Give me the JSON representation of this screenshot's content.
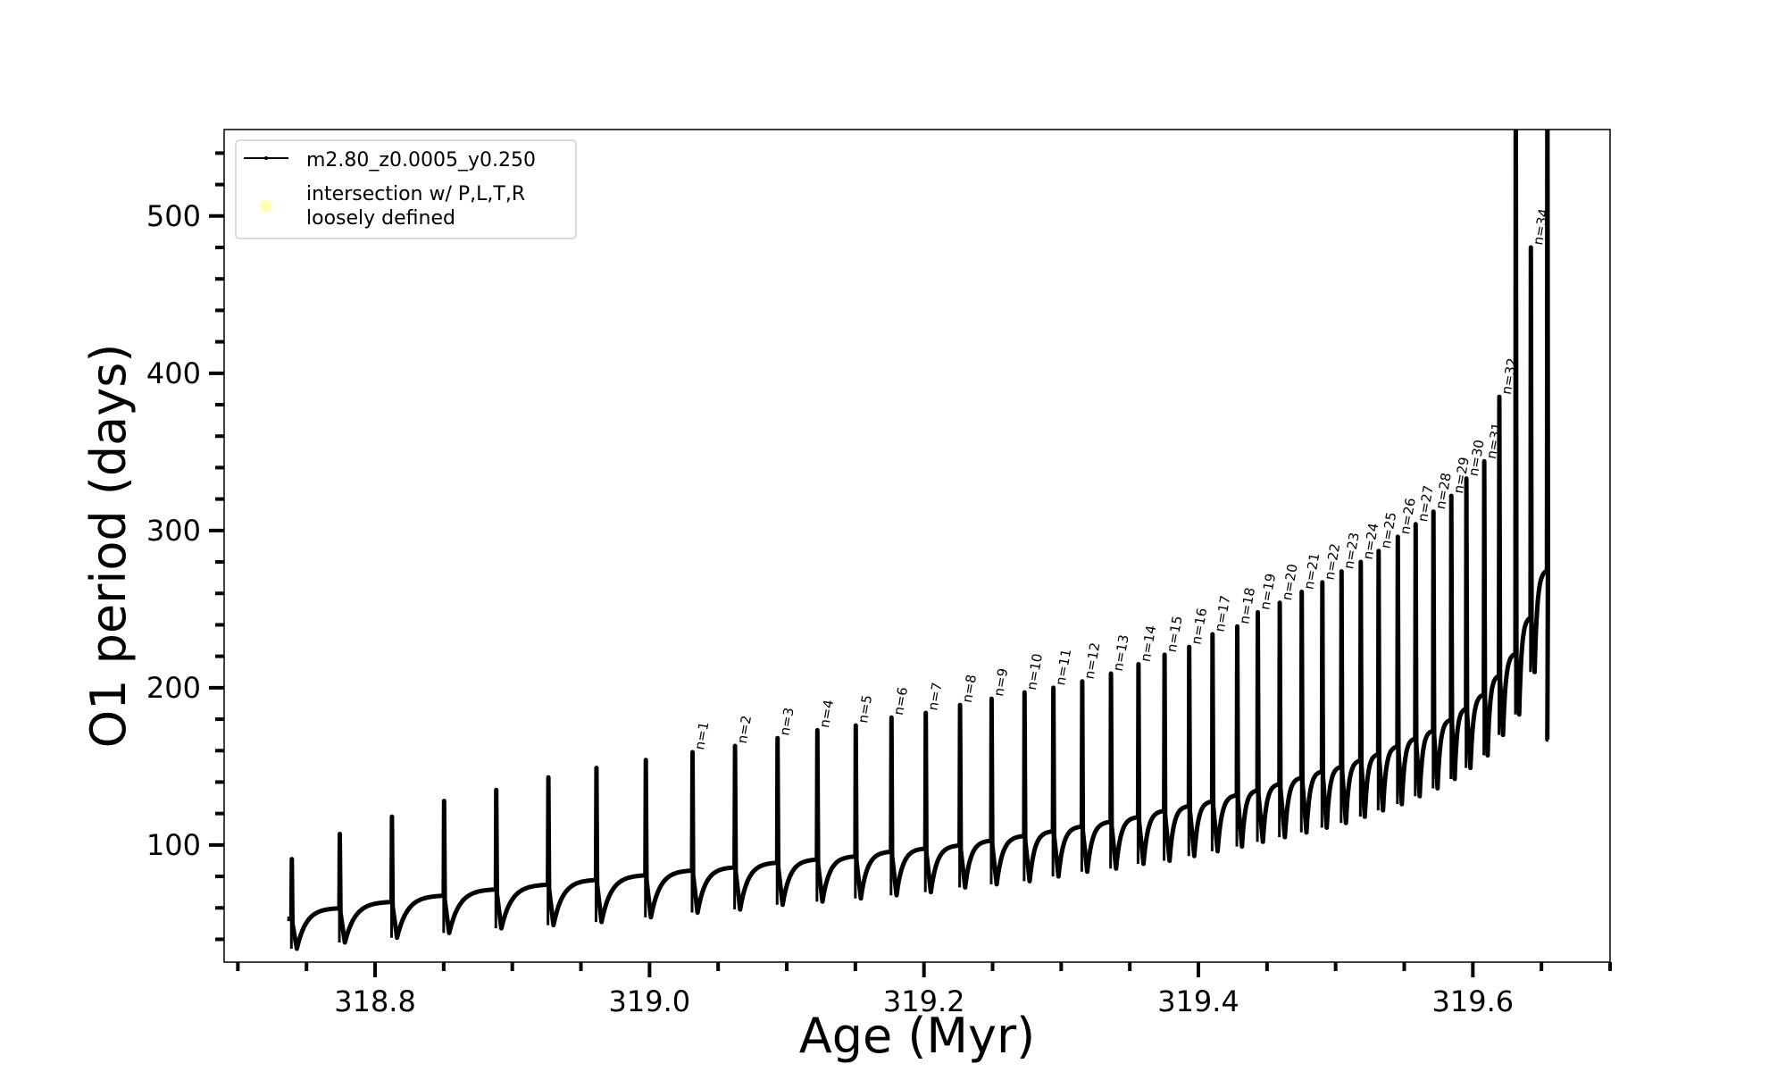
{
  "chart_data": {
    "type": "line",
    "title": "",
    "xlabel": "Age (Myr)",
    "ylabel": "O1 period (days)",
    "xlim": [
      318.69,
      319.7
    ],
    "ylim": [
      25.5,
      555
    ],
    "xticks": [
      318.8,
      319.0,
      319.2,
      319.4,
      319.6
    ],
    "xtick_labels": [
      "318.8",
      "319.0",
      "319.2",
      "319.4",
      "319.6"
    ],
    "x_minor_step": 0.05,
    "yticks": [
      100,
      200,
      300,
      400,
      500
    ],
    "ytick_labels": [
      "100",
      "200",
      "300",
      "400",
      "500"
    ],
    "y_minor_step": 20,
    "grid": false,
    "legend_placement": "upper-left",
    "legend": [
      {
        "label": "m2.80_z0.0005_y0.250",
        "kind": "line-with-marker",
        "color": "#000000"
      },
      {
        "label_lines": [
          "intersection w/ P,L,T,R",
          "loosely defined"
        ],
        "kind": "marker",
        "color": "#ffffb3"
      }
    ],
    "series": [
      {
        "name": "m2.80_z0.0005_y0.250",
        "color": "#000000",
        "start": {
          "age": 318.736,
          "period": 53
        },
        "end": {
          "age": 319.655,
          "period": 167
        },
        "pulses": [
          {
            "age": 318.739,
            "base": 53,
            "peak": 91,
            "trough": 34,
            "label": null
          },
          {
            "age": 318.774,
            "base": 60,
            "peak": 107,
            "trough": 38,
            "label": null
          },
          {
            "age": 318.812,
            "base": 64,
            "peak": 118,
            "trough": 41,
            "label": null
          },
          {
            "age": 318.85,
            "base": 68,
            "peak": 128,
            "trough": 44,
            "label": null
          },
          {
            "age": 318.888,
            "base": 72,
            "peak": 135,
            "trough": 47,
            "label": null
          },
          {
            "age": 318.926,
            "base": 75,
            "peak": 143,
            "trough": 49,
            "label": null
          },
          {
            "age": 318.961,
            "base": 78,
            "peak": 149,
            "trough": 51,
            "label": null
          },
          {
            "age": 318.997,
            "base": 81,
            "peak": 154,
            "trough": 54,
            "label": null
          },
          {
            "age": 319.031,
            "base": 84,
            "peak": 159,
            "trough": 57,
            "label": "n=1"
          },
          {
            "age": 319.062,
            "base": 86,
            "peak": 163,
            "trough": 59,
            "label": "n=2"
          },
          {
            "age": 319.093,
            "base": 89,
            "peak": 168,
            "trough": 62,
            "label": "n=3"
          },
          {
            "age": 319.122,
            "base": 91,
            "peak": 173,
            "trough": 64,
            "label": "n=4"
          },
          {
            "age": 319.15,
            "base": 93,
            "peak": 176,
            "trough": 66,
            "label": "n=5"
          },
          {
            "age": 319.176,
            "base": 96,
            "peak": 181,
            "trough": 68,
            "label": "n=6"
          },
          {
            "age": 319.201,
            "base": 98,
            "peak": 184,
            "trough": 70,
            "label": "n=7"
          },
          {
            "age": 319.226,
            "base": 100,
            "peak": 189,
            "trough": 73,
            "label": "n=8"
          },
          {
            "age": 319.249,
            "base": 103,
            "peak": 193,
            "trough": 75,
            "label": "n=9"
          },
          {
            "age": 319.273,
            "base": 106,
            "peak": 197,
            "trough": 77,
            "label": "n=10"
          },
          {
            "age": 319.294,
            "base": 109,
            "peak": 200,
            "trough": 80,
            "label": "n=11"
          },
          {
            "age": 319.315,
            "base": 112,
            "peak": 204,
            "trough": 83,
            "label": "n=12"
          },
          {
            "age": 319.336,
            "base": 115,
            "peak": 209,
            "trough": 85,
            "label": "n=13"
          },
          {
            "age": 319.356,
            "base": 118,
            "peak": 215,
            "trough": 88,
            "label": "n=14"
          },
          {
            "age": 319.375,
            "base": 122,
            "peak": 221,
            "trough": 90,
            "label": "n=15"
          },
          {
            "age": 319.393,
            "base": 125,
            "peak": 226,
            "trough": 93,
            "label": "n=16"
          },
          {
            "age": 319.41,
            "base": 128,
            "peak": 234,
            "trough": 96,
            "label": "n=17"
          },
          {
            "age": 319.428,
            "base": 132,
            "peak": 239,
            "trough": 99,
            "label": "n=18"
          },
          {
            "age": 319.443,
            "base": 135,
            "peak": 248,
            "trough": 102,
            "label": "n=19"
          },
          {
            "age": 319.459,
            "base": 139,
            "peak": 254,
            "trough": 105,
            "label": "n=20"
          },
          {
            "age": 319.475,
            "base": 143,
            "peak": 261,
            "trough": 108,
            "label": "n=21"
          },
          {
            "age": 319.49,
            "base": 147,
            "peak": 267,
            "trough": 111,
            "label": "n=22"
          },
          {
            "age": 319.504,
            "base": 150,
            "peak": 274,
            "trough": 114,
            "label": "n=23"
          },
          {
            "age": 319.518,
            "base": 154,
            "peak": 280,
            "trough": 118,
            "label": "n=24"
          },
          {
            "age": 319.531,
            "base": 158,
            "peak": 287,
            "trough": 122,
            "label": "n=25"
          },
          {
            "age": 319.545,
            "base": 163,
            "peak": 296,
            "trough": 126,
            "label": "n=26"
          },
          {
            "age": 319.558,
            "base": 168,
            "peak": 304,
            "trough": 131,
            "label": "n=27"
          },
          {
            "age": 319.571,
            "base": 173,
            "peak": 312,
            "trough": 136,
            "label": "n=28"
          },
          {
            "age": 319.584,
            "base": 180,
            "peak": 322,
            "trough": 142,
            "label": "n=29"
          },
          {
            "age": 319.595,
            "base": 187,
            "peak": 333,
            "trough": 149,
            "label": "n=30"
          },
          {
            "age": 319.608,
            "base": 196,
            "peak": 344,
            "trough": 157,
            "label": "n=31"
          },
          {
            "age": 319.619,
            "base": 208,
            "peak": 385,
            "trough": 170,
            "label": "n=32"
          },
          {
            "age": 319.631,
            "base": 222,
            "peak": 600,
            "trough": 183,
            "label": null
          },
          {
            "age": 319.642,
            "base": 245,
            "peak": 480,
            "trough": 210,
            "label": "n=34"
          },
          {
            "age": 319.654,
            "base": 275,
            "peak": 600,
            "trough": 167,
            "label": null
          }
        ]
      }
    ]
  }
}
